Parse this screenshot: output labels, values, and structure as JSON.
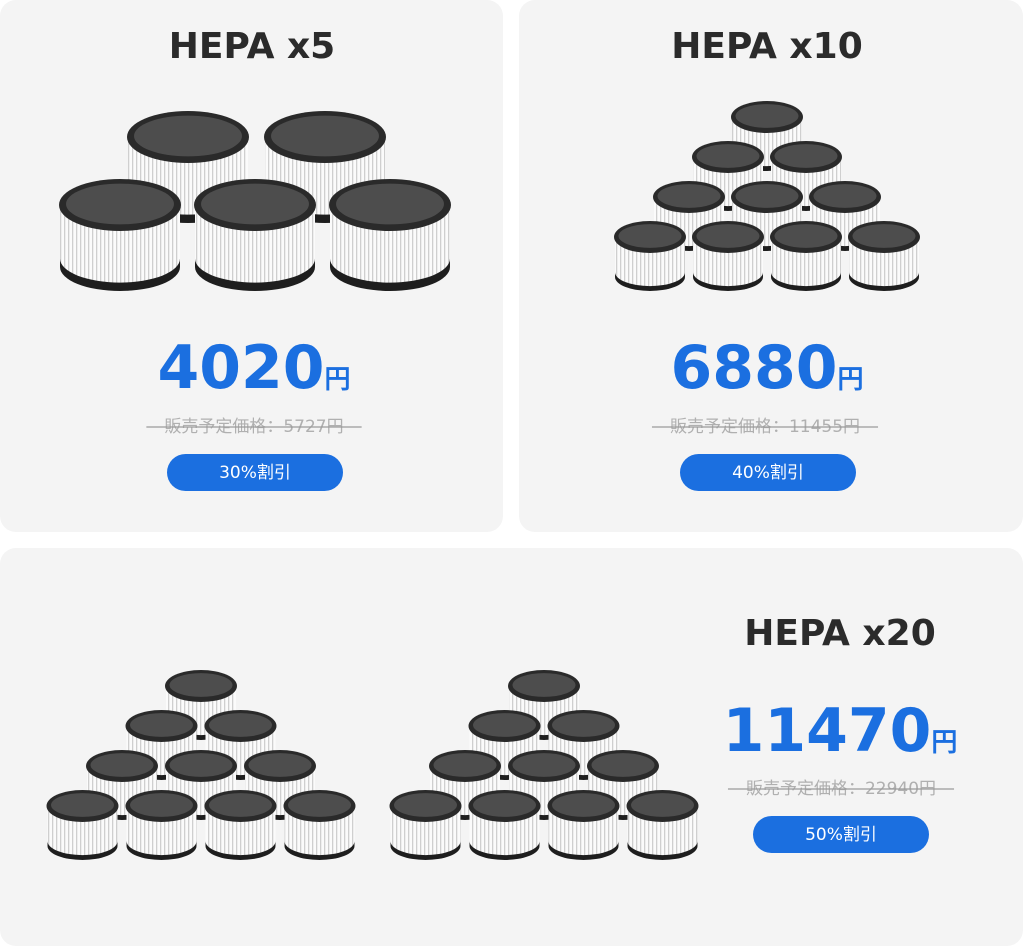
{
  "cards": [
    {
      "title": "HEPA x5",
      "price": 4020,
      "unit": "円",
      "original_price": "販売予定価格：5727円",
      "discount": "30%割引"
    },
    {
      "title": "HEPA x10",
      "price": 6880,
      "unit": "円",
      "original_price": "販売予定価格：11455円",
      "discount": "40%割引"
    },
    {
      "title": "HEPA x20",
      "price": 11470,
      "unit": "円",
      "original_price": "販売予定価格：22940円",
      "discount": "50%割引"
    }
  ]
}
